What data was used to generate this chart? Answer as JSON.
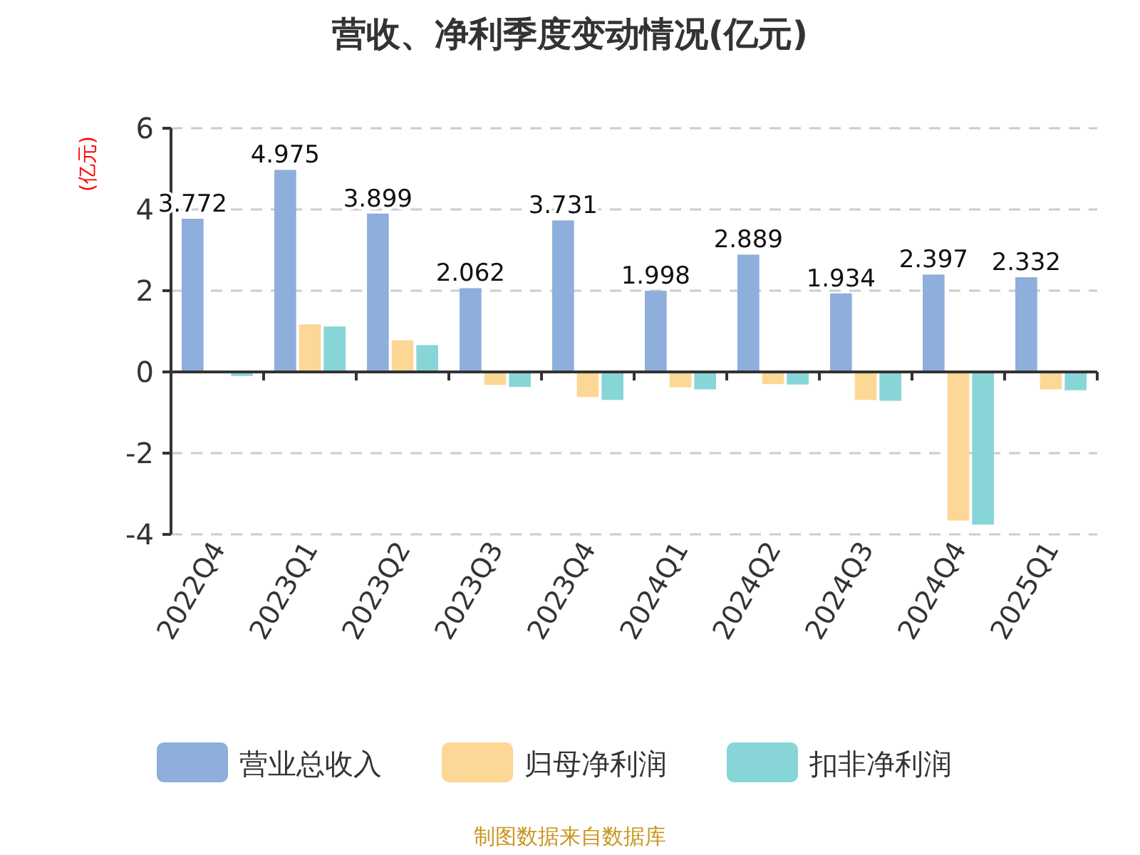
{
  "chart_data": {
    "type": "bar",
    "title": "营收、净利季度变动情况(亿元)",
    "ylabel": "(亿元)",
    "categories": [
      "2022Q4",
      "2023Q1",
      "2023Q2",
      "2023Q3",
      "2023Q4",
      "2024Q1",
      "2024Q2",
      "2024Q3",
      "2024Q4",
      "2025Q1"
    ],
    "series": [
      {
        "name": "营业总收入",
        "color": "#8eaedb",
        "values": [
          3.772,
          4.975,
          3.899,
          2.062,
          3.731,
          1.998,
          2.889,
          1.934,
          2.397,
          2.332
        ],
        "value_labels": [
          "3.772",
          "4.975",
          "3.899",
          "2.062",
          "3.731",
          "1.998",
          "2.889",
          "1.934",
          "2.397",
          "2.332"
        ]
      },
      {
        "name": "归母净利润",
        "color": "#fdd795",
        "values": [
          null,
          1.17,
          0.78,
          -0.32,
          -0.62,
          -0.38,
          -0.3,
          -0.69,
          -3.66,
          -0.43
        ]
      },
      {
        "name": "扣非净利润",
        "color": "#88d5d8",
        "values": [
          -0.1,
          1.12,
          0.66,
          -0.37,
          -0.69,
          -0.43,
          -0.31,
          -0.71,
          -3.76,
          -0.45
        ]
      }
    ],
    "ylim": [
      -4,
      6
    ],
    "yticks": [
      -4,
      -2,
      0,
      2,
      4,
      6
    ],
    "grid": "y",
    "legend": "bottom",
    "annotations": [
      "制图数据来自数据库"
    ]
  }
}
